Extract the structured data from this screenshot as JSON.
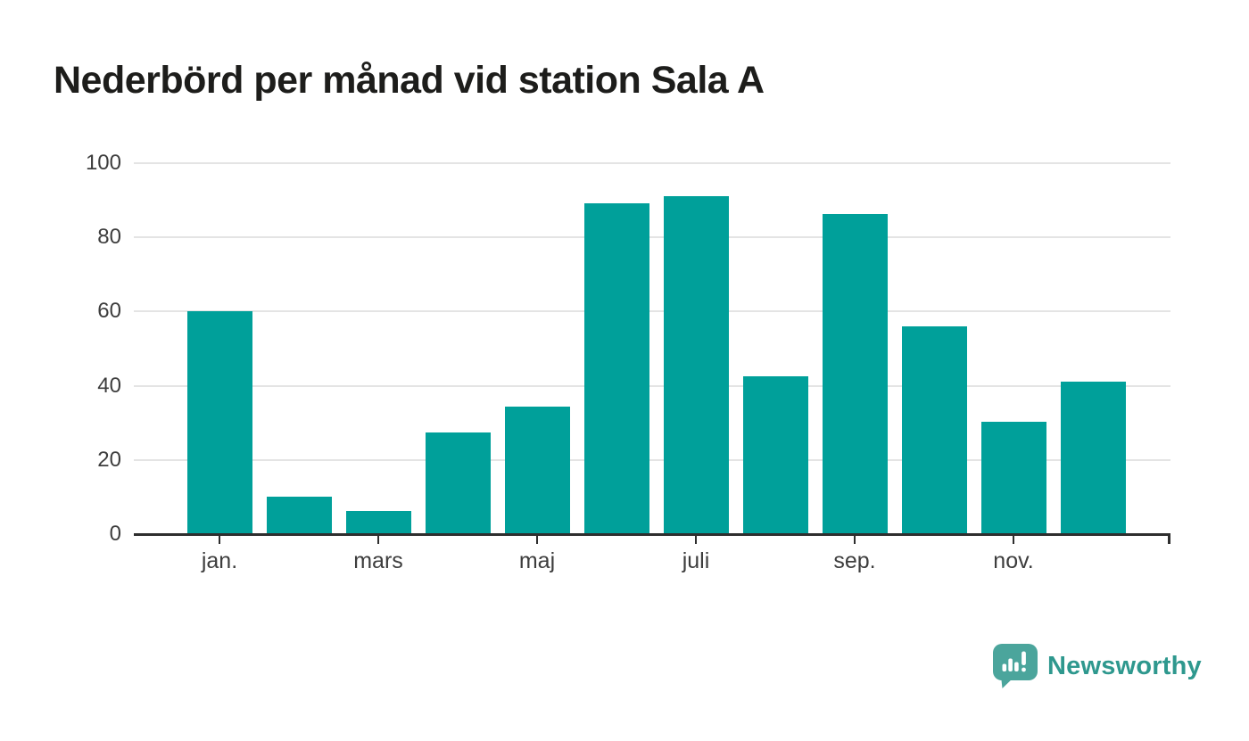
{
  "title": "Nederbörd per månad vid station Sala A",
  "chart_data": {
    "type": "bar",
    "title": "Nederbörd per månad vid station Sala A",
    "values": [
      60.2,
      10.1,
      6.3,
      27.5,
      34.3,
      89.1,
      91.2,
      42.5,
      86.4,
      56.1,
      30.4,
      41.0
    ],
    "bar_count": 12,
    "x_tick_labels": [
      "jan.",
      "mars",
      "maj",
      "juli",
      "sep.",
      "nov."
    ],
    "x_tick_indices": [
      0,
      2,
      4,
      6,
      8,
      10
    ],
    "y_ticks": [
      0,
      20,
      40,
      60,
      80,
      100
    ],
    "ylim": [
      0,
      100
    ],
    "grid": true,
    "legend_position": "none",
    "bar_color": "#00a09a",
    "gridline_color": "#e4e4e4",
    "axis_color": "#2e2e2e",
    "tick_label_color": "#3d3d3d"
  },
  "branding": {
    "logo_text": "Newsworthy",
    "logo_text_color": "#2e988e",
    "logo_mark_color": "#4ba59c",
    "logo_mark_icon": "speech-bubble-bar-chart-exclamation"
  }
}
